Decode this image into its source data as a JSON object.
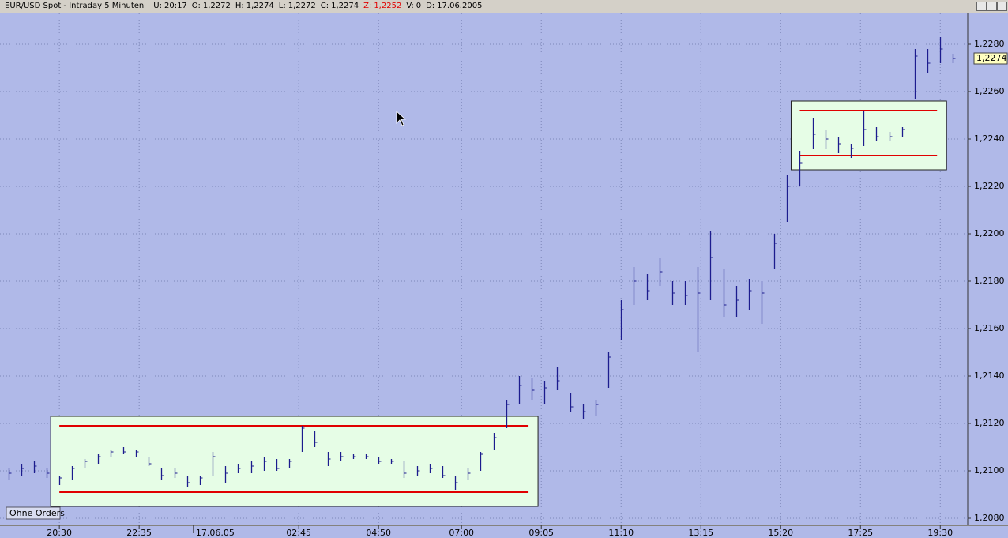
{
  "header": {
    "title": "EUR/USD Spot - Intraday 5 Minuten",
    "fields": [
      {
        "label": "U:",
        "text": "20:17"
      },
      {
        "label": "O:",
        "text": "1,2272"
      },
      {
        "label": "H:",
        "text": "1,2274"
      },
      {
        "label": "L:",
        "text": "1,2272"
      },
      {
        "label": "C:",
        "text": "1,2274"
      },
      {
        "label": "Z:",
        "text": "1,2252",
        "color": "#e00000"
      },
      {
        "label": "V:",
        "text": "0"
      },
      {
        "label": "D:",
        "text": "17.06.2005"
      }
    ]
  },
  "status_label": "Ohne Orders",
  "chart_data": {
    "type": "ohlc",
    "color": "#1c1c8e",
    "background": "#b0b9e8",
    "grid": true,
    "xlim": [
      -18.6,
      284.6
    ],
    "ylim": [
      1.2077,
      1.2293
    ],
    "xticks": [
      {
        "value": 0,
        "label": "20:30"
      },
      {
        "value": 25,
        "label": "22:35"
      },
      {
        "value": 42,
        "label": "17.06.05"
      },
      {
        "value": 75,
        "label": "02:45"
      },
      {
        "value": 100,
        "label": "04:50"
      },
      {
        "value": 126,
        "label": "07:00"
      },
      {
        "value": 151,
        "label": "09:05"
      },
      {
        "value": 176,
        "label": "11:10"
      },
      {
        "value": 201,
        "label": "13:15"
      },
      {
        "value": 226,
        "label": "15:20"
      },
      {
        "value": 251,
        "label": "17:25"
      },
      {
        "value": 276,
        "label": "19:30"
      }
    ],
    "yticks": [
      {
        "value": 1.208,
        "label": "1,2080"
      },
      {
        "value": 1.21,
        "label": "1,2100"
      },
      {
        "value": 1.212,
        "label": "1,2120"
      },
      {
        "value": 1.214,
        "label": "1,2140"
      },
      {
        "value": 1.216,
        "label": "1,2160"
      },
      {
        "value": 1.218,
        "label": "1,2180"
      },
      {
        "value": 1.22,
        "label": "1,2200"
      },
      {
        "value": 1.222,
        "label": "1,2220"
      },
      {
        "value": 1.224,
        "label": "1,2240"
      },
      {
        "value": 1.226,
        "label": "1,2260"
      },
      {
        "value": 1.228,
        "label": "1,2280"
      }
    ],
    "last_price": {
      "value": 1.2274,
      "label": "1,2274"
    },
    "x": [
      -16,
      -12,
      -8,
      -4,
      0,
      4,
      8,
      12,
      16,
      20,
      24,
      28,
      32,
      36,
      40,
      44,
      48,
      52,
      56,
      60,
      64,
      68,
      72,
      76,
      80,
      84,
      88,
      92,
      96,
      100,
      104,
      108,
      112,
      116,
      120,
      124,
      128,
      132,
      136,
      140,
      144,
      148,
      152,
      156,
      160,
      164,
      168,
      172,
      176,
      180,
      184,
      188,
      192,
      196,
      200,
      204,
      208,
      212,
      216,
      220,
      224,
      228,
      232,
      236,
      240,
      244,
      248,
      252,
      256,
      260,
      264,
      268,
      272,
      276,
      280
    ],
    "high": [
      1.2101,
      1.2103,
      1.2104,
      1.2101,
      1.2098,
      1.2102,
      1.2105,
      1.2107,
      1.2109,
      1.211,
      1.2109,
      1.2106,
      1.2101,
      1.2101,
      1.2098,
      1.2098,
      1.2108,
      1.2102,
      1.2103,
      1.2104,
      1.2106,
      1.2105,
      1.2105,
      1.2119,
      1.2117,
      1.2108,
      1.2108,
      1.2107,
      1.2107,
      1.2106,
      1.2105,
      1.2104,
      1.2102,
      1.2103,
      1.2102,
      1.2098,
      1.2101,
      1.2108,
      1.2116,
      1.213,
      1.214,
      1.2139,
      1.2138,
      1.2144,
      1.2133,
      1.2128,
      1.213,
      1.215,
      1.2172,
      1.2186,
      1.2183,
      1.219,
      1.218,
      1.218,
      1.2186,
      1.2201,
      1.2185,
      1.2178,
      1.2181,
      1.218,
      1.22,
      1.2225,
      1.2235,
      1.2249,
      1.2244,
      1.2241,
      1.2238,
      1.2252,
      1.2245,
      1.2243,
      1.2245,
      1.2278,
      1.2278,
      1.2283,
      1.2276
    ],
    "low": [
      1.2096,
      1.2098,
      1.2099,
      1.2097,
      1.2094,
      1.2096,
      1.2101,
      1.2103,
      1.2106,
      1.2107,
      1.2106,
      1.2102,
      1.2096,
      1.2097,
      1.2093,
      1.2094,
      1.2098,
      1.2095,
      1.2099,
      1.2099,
      1.21,
      1.21,
      1.2101,
      1.2108,
      1.211,
      1.2102,
      1.2104,
      1.2105,
      1.2105,
      1.2103,
      1.2103,
      1.2097,
      1.2098,
      1.2099,
      1.2097,
      1.2092,
      1.2096,
      1.21,
      1.2109,
      1.2118,
      1.2128,
      1.213,
      1.2128,
      1.2134,
      1.2125,
      1.2122,
      1.2123,
      1.2135,
      1.2155,
      1.217,
      1.2172,
      1.2178,
      1.217,
      1.217,
      1.215,
      1.2172,
      1.2165,
      1.2165,
      1.2168,
      1.2162,
      1.2185,
      1.2205,
      1.222,
      1.2236,
      1.2236,
      1.2234,
      1.2232,
      1.2237,
      1.2239,
      1.2239,
      1.2241,
      1.2257,
      1.2268,
      1.2272,
      1.2272
    ],
    "close": [
      1.2099,
      1.2101,
      1.2102,
      1.2099,
      1.2097,
      1.2101,
      1.2104,
      1.2106,
      1.2108,
      1.2108,
      1.2108,
      1.2103,
      1.2098,
      1.2099,
      1.2095,
      1.2097,
      1.2106,
      1.2099,
      1.2101,
      1.2102,
      1.2104,
      1.2101,
      1.2104,
      1.2118,
      1.2112,
      1.2105,
      1.2106,
      1.2106,
      1.2106,
      1.2104,
      1.2104,
      1.2099,
      1.21,
      1.2101,
      1.2098,
      1.2095,
      1.2099,
      1.2107,
      1.2114,
      1.2128,
      1.2136,
      1.2134,
      1.2135,
      1.2138,
      1.2127,
      1.2125,
      1.2128,
      1.2148,
      1.2168,
      1.218,
      1.2176,
      1.2184,
      1.2175,
      1.2174,
      1.2175,
      1.219,
      1.217,
      1.2172,
      1.2176,
      1.2175,
      1.2196,
      1.222,
      1.223,
      1.2242,
      1.224,
      1.2238,
      1.2236,
      1.2244,
      1.2241,
      1.2241,
      1.2244,
      1.2275,
      1.2272,
      1.2278,
      1.2274
    ],
    "ranges": [
      {
        "xrange": [
          0,
          147
        ],
        "levels": [
          1.2119,
          1.2091
        ],
        "fill": "#e6fde6",
        "line_color": "#e00000"
      },
      {
        "xrange": [
          232,
          275
        ],
        "levels": [
          1.2252,
          1.2233
        ],
        "fill": "#e6fde6",
        "line_color": "#e00000"
      }
    ]
  }
}
